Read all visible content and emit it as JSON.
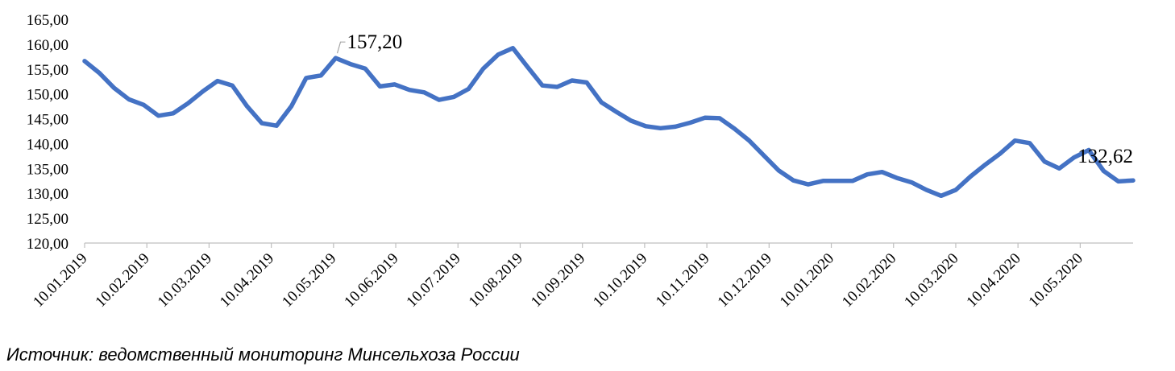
{
  "source_note": "Источник: ведомственный мониторинг Минсельхоза России",
  "chart_data": {
    "type": "line",
    "title": "",
    "xlabel": "",
    "ylabel": "",
    "ylim": [
      120,
      165
    ],
    "y_ticks": [
      "120,00",
      "125,00",
      "130,00",
      "135,00",
      "140,00",
      "145,00",
      "150,00",
      "155,00",
      "160,00",
      "165,00"
    ],
    "x_tick_labels": [
      "10.01.2019",
      "10.02.2019",
      "10.03.2019",
      "10.04.2019",
      "10.05.2019",
      "10.06.2019",
      "10.07.2019",
      "10.08.2019",
      "10.09.2019",
      "10.10.2019",
      "10.11.2019",
      "10.12.2019",
      "10.01.2020",
      "10.02.2020",
      "10.03.2020",
      "10.04.2020",
      "10.05.2020"
    ],
    "line_color": "#4472C4",
    "grid": false,
    "legend": "none",
    "series": [
      {
        "values": [
          156.6,
          154.2,
          151.2,
          148.9,
          147.8,
          145.6,
          146.1,
          148.1,
          150.5,
          152.6,
          151.7,
          147.5,
          144.1,
          143.6,
          147.5,
          153.2,
          153.7,
          157.2,
          156.0,
          155.1,
          151.5,
          151.9,
          150.8,
          150.3,
          148.8,
          149.4,
          151.0,
          155.1,
          157.9,
          159.2,
          155.4,
          151.7,
          151.4,
          152.7,
          152.3,
          148.3,
          146.4,
          144.6,
          143.5,
          143.1,
          143.4,
          144.2,
          145.2,
          145.1,
          143.0,
          140.6,
          137.6,
          134.6,
          132.6,
          131.8,
          132.5,
          132.5,
          132.5,
          133.8,
          134.3,
          133.1,
          132.2,
          130.7,
          129.5,
          130.7,
          133.4,
          135.8,
          138.0,
          140.6,
          140.1,
          136.4,
          135.0,
          137.2,
          138.7,
          134.5,
          132.4,
          132.6
        ]
      }
    ],
    "data_labels": [
      {
        "index": 17,
        "text": "157,20"
      },
      {
        "index": 71,
        "text": "132,62"
      }
    ]
  }
}
